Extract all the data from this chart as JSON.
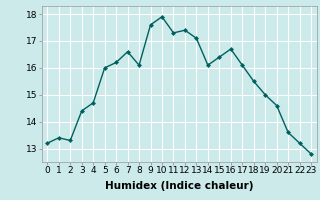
{
  "x": [
    0,
    1,
    2,
    3,
    4,
    5,
    6,
    7,
    8,
    9,
    10,
    11,
    12,
    13,
    14,
    15,
    16,
    17,
    18,
    19,
    20,
    21,
    22,
    23
  ],
  "y": [
    13.2,
    13.4,
    13.3,
    14.4,
    14.7,
    16.0,
    16.2,
    16.6,
    16.1,
    17.6,
    17.9,
    17.3,
    17.4,
    17.1,
    16.1,
    16.4,
    16.7,
    16.1,
    15.5,
    15.0,
    14.6,
    13.6,
    13.2,
    12.8
  ],
  "line_color": "#006060",
  "marker": "D",
  "marker_size": 2,
  "bg_color": "#cceaea",
  "grid_color": "#ffffff",
  "xlabel": "Humidex (Indice chaleur)",
  "xlabel_fontsize": 7.5,
  "ylim": [
    12.5,
    18.3
  ],
  "xlim": [
    -0.5,
    23.5
  ],
  "yticks": [
    13,
    14,
    15,
    16,
    17,
    18
  ],
  "xticks": [
    0,
    1,
    2,
    3,
    4,
    5,
    6,
    7,
    8,
    9,
    10,
    11,
    12,
    13,
    14,
    15,
    16,
    17,
    18,
    19,
    20,
    21,
    22,
    23
  ],
  "tick_fontsize": 6.5,
  "linewidth": 1.0
}
